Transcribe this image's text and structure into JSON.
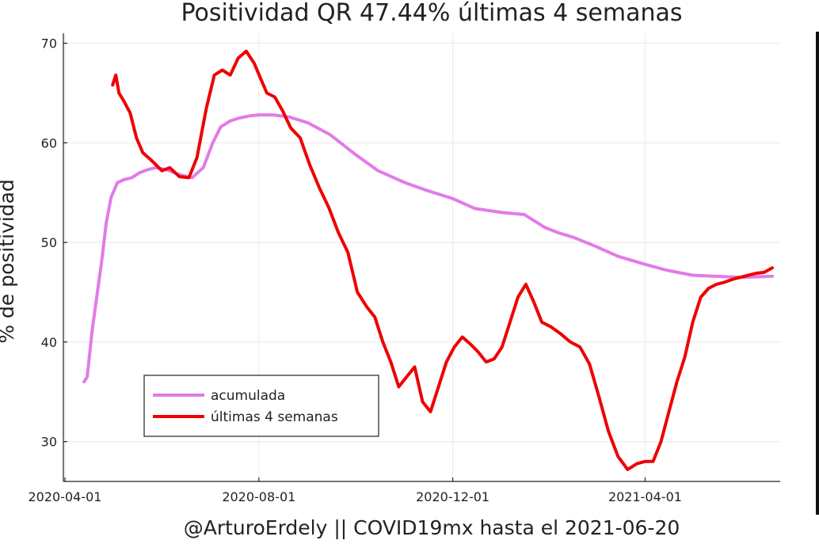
{
  "chart_data": {
    "type": "line",
    "title": "Positividad QR   47.44%  últimas 4 semanas",
    "xlabel": "@ArturoErdely || COVID19mx hasta el 2021-06-20",
    "ylabel": "% de positividad",
    "xlim": [
      "2020-03-31",
      "2021-06-25"
    ],
    "ylim": [
      26,
      71
    ],
    "x_ticks": [
      "2020-04-01",
      "2020-08-01",
      "2020-12-01",
      "2021-04-01"
    ],
    "y_ticks": [
      30,
      40,
      50,
      60,
      70
    ],
    "grid": true,
    "legend": "bottom-left",
    "series": [
      {
        "name": "acumulada",
        "color": "#e27be8",
        "x": [
          "2020-04-13",
          "2020-04-15",
          "2020-04-18",
          "2020-04-21",
          "2020-04-24",
          "2020-04-27",
          "2020-04-30",
          "2020-05-04",
          "2020-05-08",
          "2020-05-13",
          "2020-05-18",
          "2020-05-23",
          "2020-05-28",
          "2020-06-04",
          "2020-06-12",
          "2020-06-20",
          "2020-06-27",
          "2020-07-03",
          "2020-07-08",
          "2020-07-14",
          "2020-07-20",
          "2020-07-26",
          "2020-08-01",
          "2020-08-10",
          "2020-08-20",
          "2020-09-01",
          "2020-09-15",
          "2020-10-01",
          "2020-10-15",
          "2020-11-01",
          "2020-11-15",
          "2020-12-01",
          "2020-12-15",
          "2021-01-01",
          "2021-01-15",
          "2021-01-28",
          "2021-02-05",
          "2021-02-15",
          "2021-03-01",
          "2021-03-15",
          "2021-04-01",
          "2021-04-15",
          "2021-05-01",
          "2021-05-15",
          "2021-06-01",
          "2021-06-20"
        ],
        "values": [
          36.0,
          36.5,
          41.0,
          44.5,
          48.0,
          52.0,
          54.5,
          56.0,
          56.3,
          56.5,
          57.0,
          57.3,
          57.5,
          57.3,
          56.8,
          56.5,
          57.5,
          60.0,
          61.6,
          62.2,
          62.5,
          62.7,
          62.8,
          62.8,
          62.6,
          62.0,
          60.8,
          58.8,
          57.2,
          56.0,
          55.2,
          54.4,
          53.4,
          53.0,
          52.8,
          51.5,
          51.0,
          50.5,
          49.6,
          48.6,
          47.8,
          47.2,
          46.7,
          46.6,
          46.5,
          46.6
        ]
      },
      {
        "name": "últimas 4 semanas",
        "color": "#ee0000",
        "x": [
          "2020-05-01",
          "2020-05-03",
          "2020-05-05",
          "2020-05-08",
          "2020-05-12",
          "2020-05-16",
          "2020-05-20",
          "2020-05-25",
          "2020-06-01",
          "2020-06-06",
          "2020-06-12",
          "2020-06-18",
          "2020-06-23",
          "2020-06-29",
          "2020-07-04",
          "2020-07-09",
          "2020-07-14",
          "2020-07-19",
          "2020-07-24",
          "2020-07-29",
          "2020-08-02",
          "2020-08-06",
          "2020-08-11",
          "2020-08-16",
          "2020-08-21",
          "2020-08-27",
          "2020-09-02",
          "2020-09-08",
          "2020-09-14",
          "2020-09-20",
          "2020-09-26",
          "2020-10-02",
          "2020-10-08",
          "2020-10-13",
          "2020-10-18",
          "2020-10-23",
          "2020-10-28",
          "2020-11-02",
          "2020-11-07",
          "2020-11-12",
          "2020-11-17",
          "2020-11-22",
          "2020-11-27",
          "2020-12-02",
          "2020-12-07",
          "2020-12-12",
          "2020-12-17",
          "2020-12-22",
          "2020-12-27",
          "2021-01-01",
          "2021-01-06",
          "2021-01-11",
          "2021-01-16",
          "2021-01-21",
          "2021-01-26",
          "2021-02-01",
          "2021-02-07",
          "2021-02-13",
          "2021-02-19",
          "2021-02-25",
          "2021-03-03",
          "2021-03-09",
          "2021-03-15",
          "2021-03-21",
          "2021-03-27",
          "2021-04-01",
          "2021-04-06",
          "2021-04-11",
          "2021-04-16",
          "2021-04-21",
          "2021-04-26",
          "2021-05-01",
          "2021-05-06",
          "2021-05-11",
          "2021-05-16",
          "2021-05-21",
          "2021-05-26",
          "2021-05-31",
          "2021-06-05",
          "2021-06-10",
          "2021-06-15",
          "2021-06-20"
        ],
        "values": [
          65.8,
          66.8,
          65.0,
          64.2,
          63.0,
          60.5,
          59.0,
          58.3,
          57.2,
          57.5,
          56.6,
          56.5,
          58.5,
          63.5,
          66.8,
          67.3,
          66.8,
          68.5,
          69.2,
          68.0,
          66.5,
          65.0,
          64.6,
          63.2,
          61.5,
          60.5,
          57.8,
          55.5,
          53.5,
          51.0,
          49.0,
          45.0,
          43.5,
          42.5,
          40.0,
          38.0,
          35.5,
          36.5,
          37.5,
          34.0,
          33.0,
          35.5,
          38.0,
          39.5,
          40.5,
          39.8,
          39.0,
          38.0,
          38.3,
          39.5,
          42.0,
          44.5,
          45.8,
          44.0,
          42.0,
          41.5,
          40.8,
          40.0,
          39.5,
          37.8,
          34.5,
          31.0,
          28.5,
          27.2,
          27.8,
          28.0,
          28.0,
          30.0,
          33.0,
          36.0,
          38.5,
          42.0,
          44.5,
          45.4,
          45.8,
          46.0,
          46.3,
          46.5,
          46.7,
          46.9,
          47.0,
          47.44
        ]
      }
    ]
  }
}
